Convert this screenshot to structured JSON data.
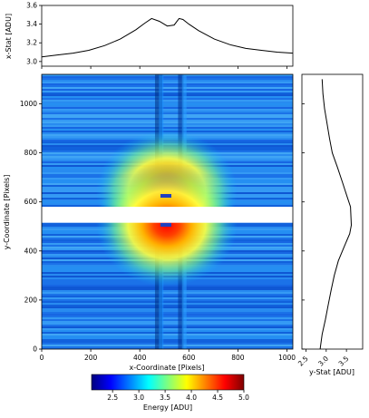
{
  "chart_data": [
    {
      "type": "line",
      "ylabel": "x-Stat [ADU]",
      "xlim": [
        0,
        1024
      ],
      "ylim": [
        2.95,
        3.6
      ],
      "yticks": [
        "3.0",
        "3.2",
        "3.4",
        "3.6"
      ],
      "x": [
        0,
        64,
        128,
        192,
        256,
        320,
        384,
        420,
        448,
        480,
        512,
        540,
        560,
        576,
        600,
        640,
        704,
        768,
        832,
        896,
        960,
        1024
      ],
      "values": [
        3.05,
        3.07,
        3.09,
        3.12,
        3.17,
        3.24,
        3.34,
        3.41,
        3.46,
        3.43,
        3.38,
        3.39,
        3.46,
        3.45,
        3.4,
        3.33,
        3.24,
        3.18,
        3.14,
        3.12,
        3.1,
        3.09
      ]
    },
    {
      "type": "heatmap",
      "xlabel": "x-Coordinate [Pixels]",
      "ylabel": "y-Coordinate [Pixels]",
      "xlim": [
        0,
        1024
      ],
      "ylim": [
        0,
        1120
      ],
      "xticks": [
        "0",
        "200",
        "400",
        "600",
        "800",
        "1000"
      ],
      "yticks": [
        "0",
        "200",
        "400",
        "600",
        "800",
        "1000"
      ],
      "center": [
        512,
        560
      ],
      "gap_y": [
        515,
        580
      ],
      "colorbar": {
        "label": "Energy [ADU]",
        "range": [
          2.1,
          5.0
        ],
        "ticks": [
          "2.5",
          "3.0",
          "3.5",
          "4.0",
          "4.5",
          "5.0"
        ],
        "colors": [
          "#00007f",
          "#0000ff",
          "#007fff",
          "#00ffff",
          "#7fff7f",
          "#ffff00",
          "#ff7f00",
          "#ff0000",
          "#7f0000"
        ]
      }
    },
    {
      "type": "line",
      "xlabel": "y-Stat [ADU]",
      "xlim": [
        2.4,
        3.9
      ],
      "ylim": [
        0,
        1120
      ],
      "xticks": [
        "2.5",
        "3.0",
        "3.5"
      ],
      "y": [
        0,
        60,
        120,
        180,
        240,
        300,
        360,
        420,
        470,
        505,
        580,
        620,
        680,
        740,
        800,
        860,
        920,
        980,
        1040,
        1100
      ],
      "values": [
        2.85,
        2.9,
        2.98,
        3.05,
        3.12,
        3.2,
        3.3,
        3.45,
        3.58,
        3.62,
        3.6,
        3.52,
        3.4,
        3.28,
        3.15,
        3.08,
        3.02,
        2.96,
        2.92,
        2.9
      ]
    }
  ]
}
